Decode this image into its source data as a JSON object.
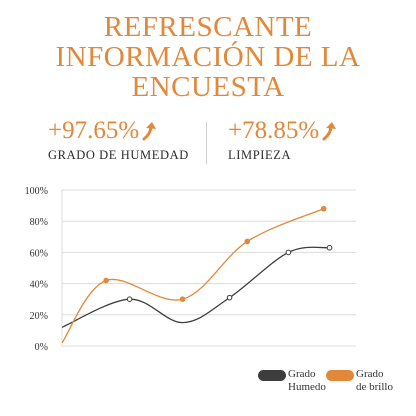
{
  "title_lines": [
    "REFRESCANTE",
    "INFORMACIÓN DE LA",
    "ENCUESTA"
  ],
  "stats": [
    {
      "value": "+97.65%",
      "label": "GRADO DE HUMEDAD",
      "icon": "arrow-up-right-icon"
    },
    {
      "value": "+78.85%",
      "label": "LIMPIEZA",
      "icon": "arrow-up-right-icon"
    }
  ],
  "colors": {
    "accent": "#e3873a",
    "dark": "#3d3d3d",
    "grid": "#dcdcdc"
  },
  "chart_data": {
    "type": "line",
    "title": "",
    "xlabel": "",
    "ylabel": "",
    "ylim": [
      0,
      100
    ],
    "grid": true,
    "legend": "bottom-right",
    "y_ticks": [
      "100%",
      "80%",
      "60%",
      "40%",
      "20%",
      "0%"
    ],
    "series": [
      {
        "name": [
          "Grado",
          "Humedo"
        ],
        "color": "#3d3d3d",
        "x": [
          0,
          0.23,
          0.41,
          0.57,
          0.77,
          0.91
        ],
        "points": [
          0.23,
          0.57,
          0.77,
          0.91
        ],
        "values": [
          12,
          30,
          15,
          31,
          60,
          63
        ]
      },
      {
        "name": [
          "Grado",
          "de brillo"
        ],
        "color": "#e3873a",
        "x": [
          0,
          0.15,
          0.41,
          0.63,
          0.89
        ],
        "points": [
          0.15,
          0.41,
          0.63,
          0.89
        ],
        "values": [
          2,
          42,
          30,
          67,
          88
        ]
      }
    ]
  }
}
